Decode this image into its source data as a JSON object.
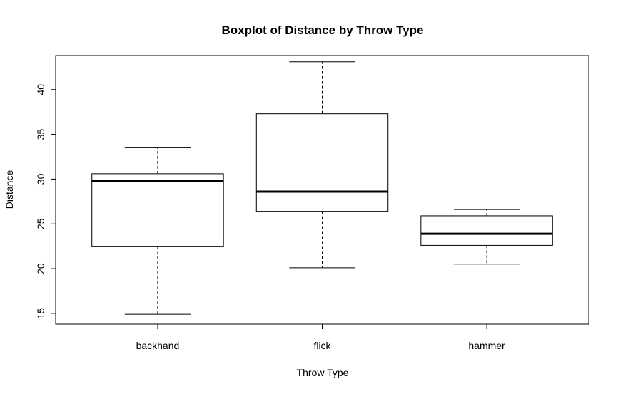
{
  "chart_data": {
    "type": "boxplot",
    "title": "Boxplot of Distance by Throw Type",
    "xlabel": "Throw Type",
    "ylabel": "Distance",
    "categories": [
      "backhand",
      "flick",
      "hammer"
    ],
    "ylim": [
      13.8,
      43.8
    ],
    "yticks": [
      15,
      20,
      25,
      30,
      35,
      40
    ],
    "boxes": [
      {
        "name": "backhand",
        "whisker_low": 14.9,
        "q1": 22.5,
        "median": 29.8,
        "q3": 30.6,
        "whisker_high": 33.5
      },
      {
        "name": "flick",
        "whisker_low": 20.1,
        "q1": 26.4,
        "median": 28.6,
        "q3": 37.3,
        "whisker_high": 43.1
      },
      {
        "name": "hammer",
        "whisker_low": 20.5,
        "q1": 22.6,
        "median": 23.9,
        "q3": 25.9,
        "whisker_high": 26.6
      }
    ],
    "grid": false
  }
}
